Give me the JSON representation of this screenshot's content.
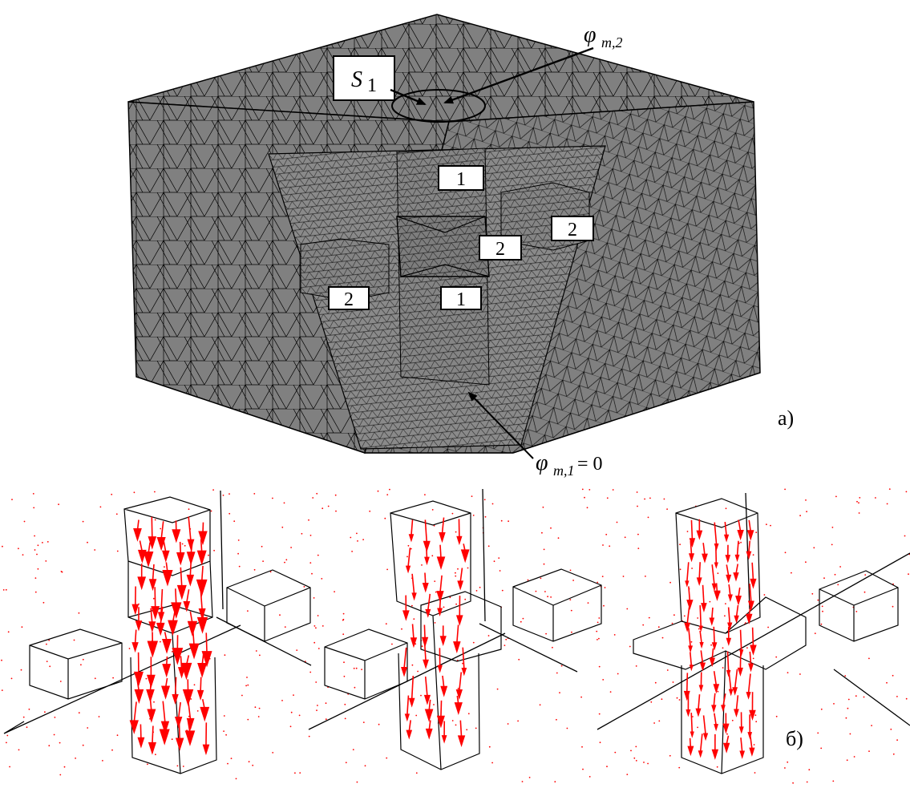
{
  "panel_a": {
    "panel_letter": "а)",
    "labels": {
      "s1_main": "S",
      "s1_sub": "1",
      "phi2_symbol": "φ",
      "phi2_sub": "m,2",
      "phi1_symbol": "φ",
      "phi1_sub": "m,1",
      "phi1_eq": " = 0",
      "box_top_1": "1",
      "box_right_2": "2",
      "box_center_2": "2",
      "box_left_2": "2",
      "box_bottom_1": "1"
    },
    "colors": {
      "mesh_fill": "#808080",
      "mesh_line": "#000000"
    }
  },
  "panel_b": {
    "panel_letter": "б)",
    "colors": {
      "arrow": "#ff0000",
      "outline": "#000000"
    }
  }
}
